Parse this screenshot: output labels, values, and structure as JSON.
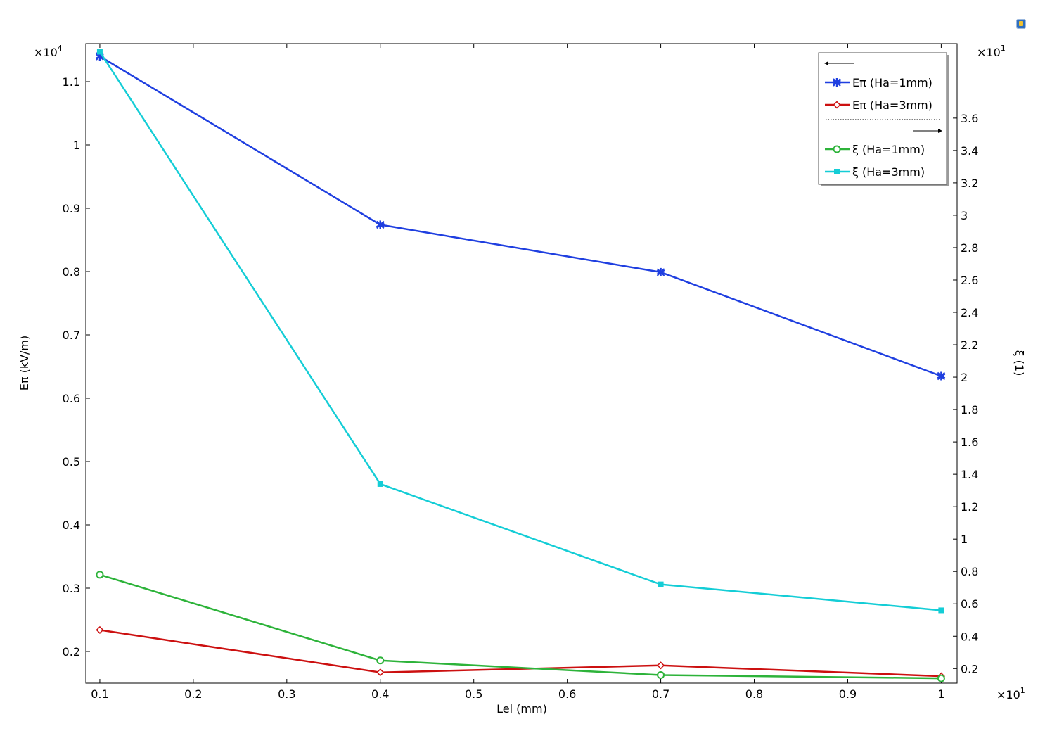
{
  "toolbar": {
    "icon": "app-logo-icon"
  },
  "chart_data": {
    "type": "line",
    "x": [
      1,
      4,
      7,
      10
    ],
    "xlabel": "Lel (mm)",
    "xlim": [
      0.85,
      10.17
    ],
    "x_ticks": [
      1,
      2,
      3,
      4,
      5,
      6,
      7,
      8,
      9,
      10
    ],
    "x_tick_labels": [
      "0.1",
      "0.2",
      "0.3",
      "0.4",
      "0.5",
      "0.6",
      "0.7",
      "0.8",
      "0.9",
      "1"
    ],
    "x_multiplier": "×10",
    "x_multiplier_exp": "1",
    "y_left": {
      "label": "Eπ (kV/m)",
      "lim": [
        1500,
        11600
      ],
      "ticks": [
        2000,
        3000,
        4000,
        5000,
        6000,
        7000,
        8000,
        9000,
        10000,
        11000
      ],
      "tick_labels": [
        "0.2",
        "0.3",
        "0.4",
        "0.5",
        "0.6",
        "0.7",
        "0.8",
        "0.9",
        "1",
        "1.1"
      ],
      "multiplier": "×10",
      "multiplier_exp": "4"
    },
    "y_right": {
      "label": "ξ (1)",
      "lim": [
        1.1,
        40.6
      ],
      "ticks": [
        2,
        4,
        6,
        8,
        10,
        12,
        14,
        16,
        18,
        20,
        22,
        24,
        26,
        28,
        30,
        32,
        34,
        36
      ],
      "tick_labels": [
        "0.2",
        "0.4",
        "0.6",
        "0.8",
        "1",
        "1.2",
        "1.4",
        "1.6",
        "1.8",
        "2",
        "2.2",
        "2.4",
        "2.6",
        "2.8",
        "3",
        "3.2",
        "3.4",
        "3.6"
      ],
      "multiplier": "×10",
      "multiplier_exp": "1"
    },
    "series": [
      {
        "name": "Eπ (Ha=1mm)",
        "axis": "left",
        "color": "#1f3fe0",
        "marker": "asterisk",
        "values": [
          11400,
          8740,
          7990,
          6350
        ]
      },
      {
        "name": "Eπ (Ha=3mm)",
        "axis": "left",
        "color": "#cc1010",
        "marker": "diamond",
        "values": [
          2340,
          1670,
          1780,
          1610
        ]
      },
      {
        "name": "ξ (Ha=1mm)",
        "axis": "right",
        "color": "#2db33a",
        "marker": "circle",
        "values": [
          7.8,
          2.5,
          1.6,
          1.4
        ]
      },
      {
        "name": "ξ (Ha=3mm)",
        "axis": "right",
        "color": "#14cdd6",
        "marker": "square",
        "values": [
          40.1,
          13.4,
          7.2,
          5.6
        ]
      }
    ],
    "legend": {
      "placement": "top-right"
    },
    "grid": false
  }
}
